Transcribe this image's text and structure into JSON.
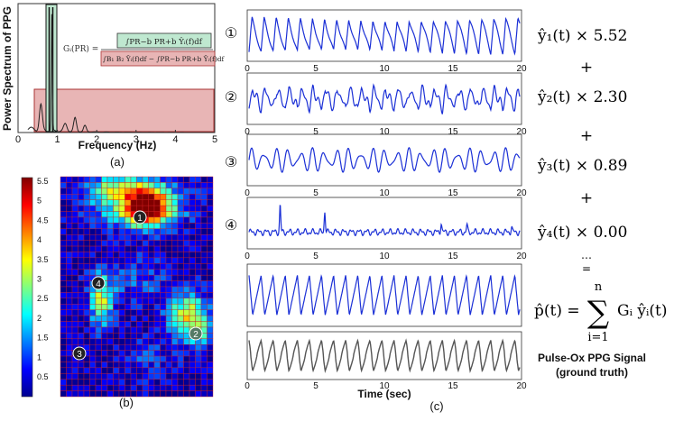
{
  "panel_a": {
    "ylabel": "Power Spectrum of PPG",
    "xlabel": "Frequency (Hz)",
    "xticks": [
      "0",
      "1",
      "2",
      "3",
      "4",
      "5"
    ],
    "caption": "(a)",
    "formula_lhs": "Gᵢ(PR) =",
    "formula_num": "∫PR−b PR+b Ŷᵢ(f)df",
    "formula_den": "∫B₁ B₂ Ŷᵢ(f)df − ∫PR−b PR+b Ŷᵢ(f)df",
    "colors": {
      "band_fill": "#bfe8d0",
      "noise_fill": "#e8b5b5",
      "spectrum": "#222222"
    }
  },
  "panel_b": {
    "colorbar_ticks": [
      "5.5",
      "5",
      "4.5",
      "4",
      "3.5",
      "3",
      "2.5",
      "2",
      "1.5",
      "1",
      "0.5"
    ],
    "caption": "(b)",
    "markers": [
      "1",
      "2",
      "3",
      "4"
    ]
  },
  "panel_c": {
    "signals": [
      {
        "num": "①",
        "weight_label": "ŷ₁(t) × 5.52"
      },
      {
        "num": "②",
        "weight_label": "ŷ₂(t) × 2.30"
      },
      {
        "num": "③",
        "weight_label": "ŷ₃(t) × 0.89"
      },
      {
        "num": "④",
        "weight_label": "ŷ₄(t) × 0.00"
      }
    ],
    "plus": "+",
    "dots": "…",
    "equals": "=",
    "sum_lhs": "p̂(t) =",
    "sum_top": "n",
    "sum_bottom": "i=1",
    "sum_rhs": "Gᵢ ŷᵢ(t)",
    "xticks": [
      "0",
      "5",
      "10",
      "15",
      "20"
    ],
    "xlabel": "Time (sec)",
    "caption": "(c)",
    "ground_truth_line1": "Pulse-Ox PPG Signal",
    "ground_truth_line2": "(ground truth)",
    "colors": {
      "signal": "#1a2fd6",
      "ground_truth": "#555555"
    }
  }
}
